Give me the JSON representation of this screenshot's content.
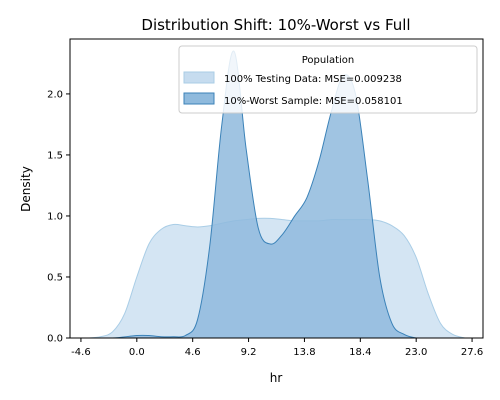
{
  "chart_data": {
    "type": "area",
    "title": "Distribution Shift: 10%-Worst vs Full",
    "xlabel": "hr",
    "ylabel": "Density",
    "xlim": [
      -5.5,
      28.5
    ],
    "ylim": [
      0,
      2.45
    ],
    "x_ticks": [
      -4.6,
      0.0,
      4.6,
      9.2,
      13.8,
      18.4,
      23.0,
      27.6
    ],
    "x_tick_labels": [
      "-4.6",
      "0.0",
      "4.6",
      "9.2",
      "13.8",
      "18.4",
      "23.0",
      "27.6"
    ],
    "y_ticks": [
      0.0,
      0.5,
      1.0,
      1.5,
      2.0
    ],
    "y_tick_labels": [
      "0.0",
      "0.5",
      "1.0",
      "1.5",
      "2.0"
    ],
    "legend": {
      "title": "Population",
      "placement": "upper-right"
    },
    "series": [
      {
        "name": "100% Testing Data: MSE=0.009238",
        "fill_color": "#c6dcef",
        "line_color": "#a9cde6",
        "x": [
          -4.0,
          -3.0,
          -2.0,
          -1.0,
          0.0,
          1.0,
          2.0,
          3.0,
          4.0,
          5.0,
          6.0,
          7.0,
          8.0,
          9.0,
          10.0,
          11.0,
          12.0,
          13.0,
          14.0,
          15.0,
          16.0,
          17.0,
          18.0,
          19.0,
          20.0,
          21.0,
          22.0,
          23.0,
          24.0,
          25.0,
          26.0,
          27.0
        ],
        "y": [
          0.0,
          0.01,
          0.05,
          0.2,
          0.5,
          0.77,
          0.89,
          0.93,
          0.92,
          0.91,
          0.92,
          0.94,
          0.96,
          0.97,
          0.98,
          0.98,
          0.97,
          0.96,
          0.96,
          0.96,
          0.97,
          0.97,
          0.97,
          0.97,
          0.96,
          0.92,
          0.84,
          0.66,
          0.36,
          0.12,
          0.03,
          0.0
        ]
      },
      {
        "name": "10%-Worst Sample: MSE=0.058101",
        "fill_color": "#8fbadd",
        "line_color": "#3b82b8",
        "x": [
          -4.0,
          -2.0,
          0.0,
          1.0,
          2.0,
          3.0,
          4.0,
          5.0,
          6.0,
          7.0,
          8.0,
          9.0,
          10.0,
          11.0,
          12.0,
          13.0,
          14.0,
          15.0,
          16.0,
          17.0,
          18.0,
          19.0,
          20.0,
          21.0,
          22.0,
          23.0,
          24.0
        ],
        "y": [
          0.0,
          0.0,
          0.02,
          0.02,
          0.01,
          0.01,
          0.02,
          0.15,
          0.75,
          1.75,
          2.35,
          1.55,
          0.9,
          0.77,
          0.85,
          1.0,
          1.15,
          1.45,
          1.85,
          2.15,
          2.0,
          1.3,
          0.5,
          0.12,
          0.03,
          0.0,
          0.0
        ]
      }
    ]
  }
}
